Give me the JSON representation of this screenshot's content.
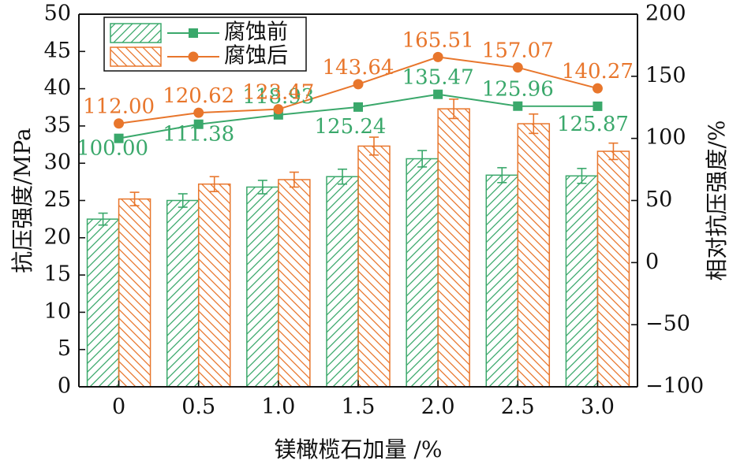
{
  "chart_data": {
    "type": "bar",
    "categories": [
      "0",
      "0.5",
      "1.0",
      "1.5",
      "2.0",
      "2.5",
      "3.0"
    ],
    "xlabel": "镁橄榄石加量 /%",
    "ylabel": "抗压强度/MPa",
    "y2label": "相对抗压强度/%",
    "ylim": [
      0,
      50
    ],
    "y2lim": [
      -100,
      200
    ],
    "yticks": [
      0,
      5,
      10,
      15,
      20,
      25,
      30,
      35,
      40,
      45,
      50
    ],
    "y2ticks": [
      -100,
      -50,
      0,
      50,
      100,
      150,
      200
    ],
    "grid": false,
    "legend_position": "top-left",
    "bar_series": [
      {
        "name": "腐蚀前",
        "color": "#3aa86b",
        "hatch": "forward",
        "values": [
          22.5,
          25.0,
          26.8,
          28.2,
          30.6,
          28.4,
          28.3
        ],
        "errors": [
          0.8,
          0.9,
          0.9,
          1.0,
          1.1,
          1.0,
          1.0
        ]
      },
      {
        "name": "腐蚀后",
        "color": "#e8762c",
        "hatch": "backward",
        "values": [
          25.2,
          27.2,
          27.8,
          32.3,
          37.3,
          35.3,
          31.6
        ],
        "errors": [
          0.9,
          1.0,
          1.0,
          1.2,
          1.3,
          1.3,
          1.1
        ]
      }
    ],
    "line_series": [
      {
        "name": "腐蚀前",
        "color": "#3aa86b",
        "marker": "square",
        "axis": "right",
        "values": [
          100.0,
          111.38,
          118.93,
          125.24,
          135.47,
          125.96,
          125.87
        ],
        "labels": [
          "100.00",
          "111.38",
          "118.93",
          "125.24",
          "135.47",
          "125.96",
          "125.87"
        ]
      },
      {
        "name": "腐蚀后",
        "color": "#e8762c",
        "marker": "circle",
        "axis": "right",
        "values": [
          112.0,
          120.62,
          123.47,
          143.64,
          165.51,
          157.07,
          140.27
        ],
        "labels": [
          "112.00",
          "120.62",
          "123.47",
          "143.64",
          "165.51",
          "157.07",
          "140.27"
        ]
      }
    ],
    "legend": [
      "腐蚀前",
      "腐蚀后"
    ]
  }
}
